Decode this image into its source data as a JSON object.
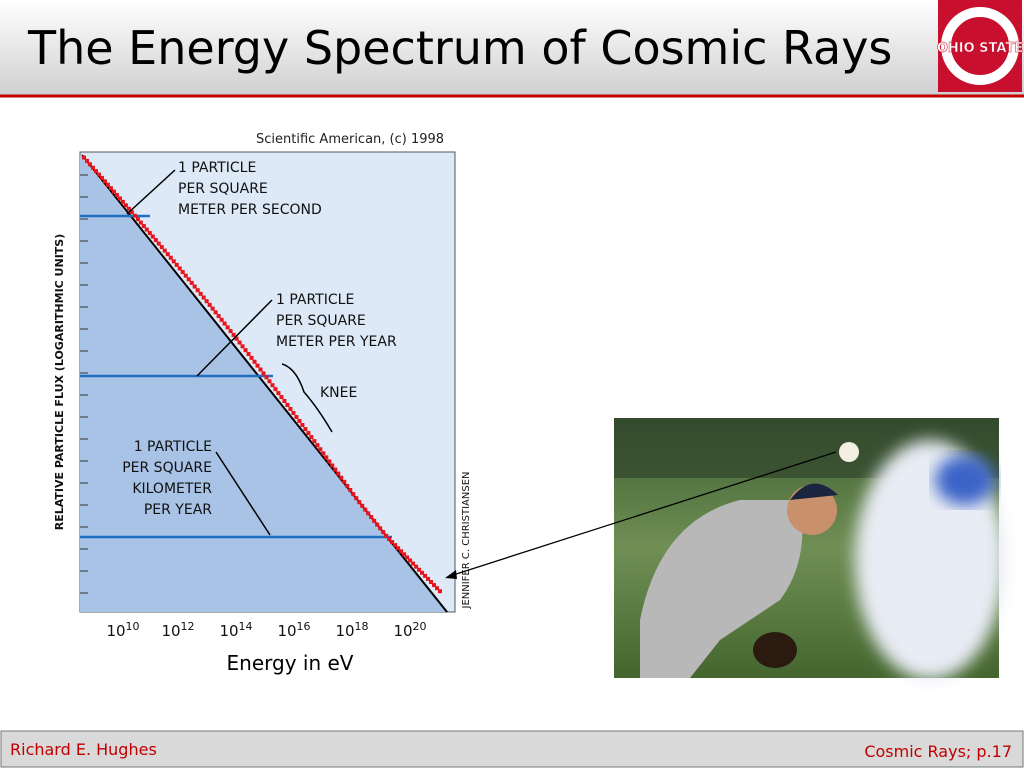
{
  "header": {
    "title": "The Energy Spectrum of Cosmic Rays",
    "logo": "OHIO STATE"
  },
  "figure": {
    "credit": "Scientific American, (c) 1998",
    "y_axis_label": "RELATIVE PARTICLE FLUX (LOGARITHMIC UNITS)",
    "artist": "JENNIFER C. CHRISTIANSEN",
    "annotations": [
      [
        "1 PARTICLE",
        "PER SQUARE",
        "METER PER SECOND"
      ],
      [
        "1 PARTICLE",
        "PER SQUARE",
        "METER PER YEAR"
      ],
      [
        "KNEE"
      ],
      [
        "1 PARTICLE",
        "PER SQUARE",
        "KILOMETER",
        "PER YEAR"
      ]
    ],
    "x_ticks": [
      {
        "base": "10",
        "exp": "10"
      },
      {
        "base": "10",
        "exp": "12"
      },
      {
        "base": "10",
        "exp": "14"
      },
      {
        "base": "10",
        "exp": "16"
      },
      {
        "base": "10",
        "exp": "18"
      },
      {
        "base": "10",
        "exp": "20"
      }
    ],
    "x_label": "Energy in eV"
  },
  "footer": {
    "left": "Richard E. Hughes",
    "right": "Cosmic Rays; p.17"
  }
}
